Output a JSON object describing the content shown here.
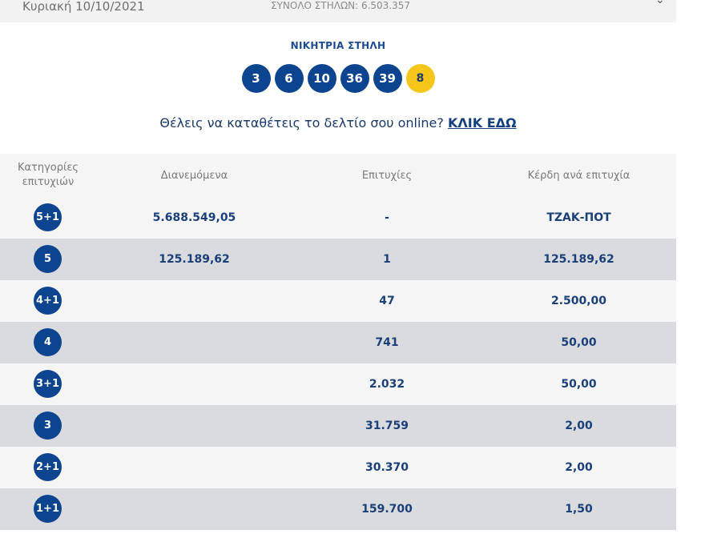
{
  "header": {
    "date": "Κυριακή 10/10/2021",
    "total_columns": "ΣΥΝΟΛΟ ΣΤΗΛΩΝ: 6.503.357"
  },
  "winning": {
    "title": "ΝΙΚΗΤΡΙΑ ΣΤΗΛΗ",
    "numbers": [
      "3",
      "6",
      "10",
      "36",
      "39"
    ],
    "joker": "8",
    "colors": {
      "ball": "#0d4490",
      "joker": "#f6c61b"
    }
  },
  "cta": {
    "text": "Θέλεις να καταθέτεις το δελτίο σου online?",
    "link": "ΚΛΙΚ ΕΔΩ"
  },
  "table": {
    "headers": {
      "category_line1": "Κατηγορίες",
      "category_line2": "επιτυχιών",
      "distributed": "Διανεμόμενα",
      "winners": "Επιτυχίες",
      "prize": "Κέρδη ανά επιτυχία"
    },
    "rows": [
      {
        "category": "5+1",
        "distributed": "5.688.549,05",
        "winners": "-",
        "prize": "ΤΖΑΚ-ΠΟΤ"
      },
      {
        "category": "5",
        "distributed": "125.189,62",
        "winners": "1",
        "prize": "125.189,62"
      },
      {
        "category": "4+1",
        "distributed": "",
        "winners": "47",
        "prize": "2.500,00"
      },
      {
        "category": "4",
        "distributed": "",
        "winners": "741",
        "prize": "50,00"
      },
      {
        "category": "3+1",
        "distributed": "",
        "winners": "2.032",
        "prize": "50,00"
      },
      {
        "category": "3",
        "distributed": "",
        "winners": "31.759",
        "prize": "2,00"
      },
      {
        "category": "2+1",
        "distributed": "",
        "winners": "30.370",
        "prize": "2,00"
      },
      {
        "category": "1+1",
        "distributed": "",
        "winners": "159.700",
        "prize": "1,50"
      }
    ]
  }
}
